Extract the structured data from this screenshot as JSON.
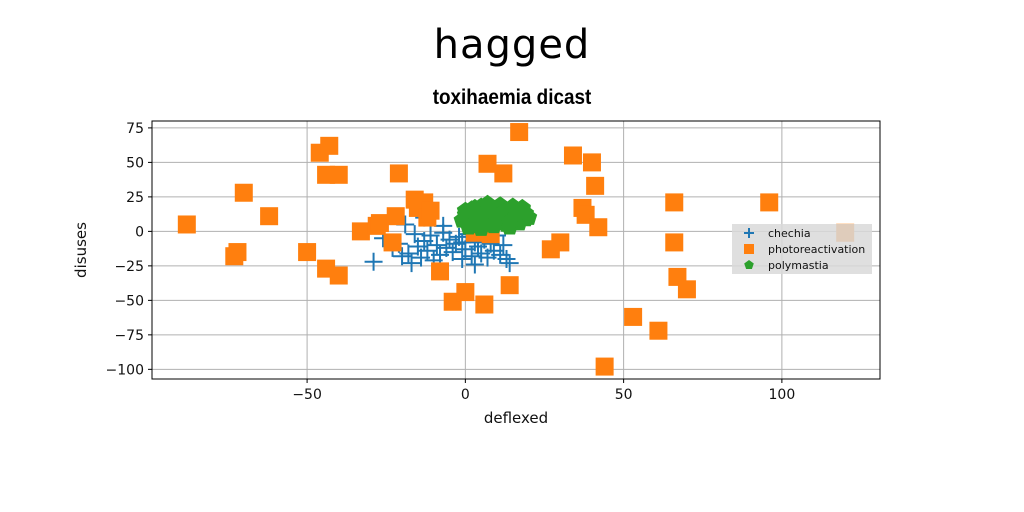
{
  "figure_title": "hagged",
  "chart_data": {
    "type": "scatter",
    "title": "toxihaemia dicast",
    "xlabel": "deflexed",
    "ylabel": "disuses",
    "xlim": [
      -99,
      131
    ],
    "ylim": [
      -107,
      80
    ],
    "xticks": [
      -50,
      0,
      50,
      100
    ],
    "yticks": [
      75,
      50,
      25,
      0,
      -25,
      -50,
      -75,
      -100
    ],
    "grid": true,
    "legend_position": "center-right",
    "series": [
      {
        "name": "chechia",
        "marker": "plus",
        "color": "#1f77b4",
        "x": [
          -29,
          -26,
          -23,
          -21,
          -20,
          -18,
          -17,
          -16,
          -15,
          -14,
          -13,
          -12,
          -11,
          -10,
          -9,
          -8,
          -7,
          -6,
          -5,
          -4,
          -3,
          -2,
          -1,
          0,
          1,
          2,
          3,
          4,
          5,
          6,
          7,
          8,
          9,
          10,
          11,
          12,
          13,
          14,
          -19,
          -13,
          -7,
          -1,
          3
        ],
        "y": [
          -22,
          -5,
          -12,
          -9,
          -18,
          -16,
          -23,
          -2,
          -11,
          -19,
          -7,
          -14,
          -3,
          -21,
          -10,
          -17,
          -1,
          -12,
          -6,
          -15,
          -9,
          -4,
          -20,
          -13,
          -2,
          -18,
          -8,
          -11,
          -16,
          -6,
          -19,
          -9,
          -14,
          -3,
          -17,
          -10,
          -20,
          -23,
          5,
          10,
          4,
          -8,
          -24
        ]
      },
      {
        "name": "photoreactivation",
        "marker": "square",
        "color": "#ff7f0e",
        "x": [
          -88,
          -73,
          -72,
          -70,
          -62,
          -50,
          -46,
          -44,
          -44,
          -43,
          -40,
          -40,
          -33,
          -28,
          -27,
          -23,
          -22,
          -21,
          -16,
          -15,
          -13,
          -12,
          -11,
          -8,
          -4,
          0,
          3,
          6,
          7,
          8,
          12,
          14,
          17,
          27,
          30,
          34,
          37,
          38,
          40,
          41,
          42,
          44,
          53,
          61,
          66,
          66,
          67,
          70,
          96,
          120
        ],
        "y": [
          5,
          -18,
          -15,
          28,
          11,
          -15,
          57,
          41,
          -27,
          62,
          41,
          -32,
          0,
          4,
          6,
          -8,
          11,
          42,
          23,
          17,
          21,
          10,
          15,
          -29,
          -51,
          -44,
          -1,
          -53,
          49,
          -2,
          42,
          -39,
          72,
          -13,
          -8,
          55,
          17,
          12,
          50,
          33,
          3,
          -98,
          -62,
          -72,
          -8,
          21,
          -33,
          -42,
          21,
          -1
        ]
      },
      {
        "name": "polymastia",
        "marker": "pentagon",
        "color": "#2ca02c",
        "x": [
          -1,
          0,
          1,
          2,
          3,
          4,
          5,
          6,
          7,
          8,
          9,
          10,
          11,
          12,
          13,
          14,
          15,
          16,
          17,
          18,
          19,
          20,
          1,
          3,
          5,
          7,
          9,
          11,
          13,
          15,
          17,
          19,
          2,
          4,
          6,
          8,
          10,
          12,
          14,
          16,
          18,
          0,
          6,
          10,
          14,
          18
        ],
        "y": [
          8,
          12,
          5,
          15,
          9,
          11,
          18,
          7,
          14,
          10,
          16,
          6,
          12,
          17,
          9,
          13,
          15,
          8,
          11,
          16,
          13,
          10,
          3,
          17,
          2,
          20,
          4,
          19,
          5,
          18,
          6,
          9,
          16,
          4,
          12,
          18,
          8,
          14,
          3,
          11,
          17,
          15,
          5,
          11,
          7,
          14
        ]
      }
    ]
  }
}
